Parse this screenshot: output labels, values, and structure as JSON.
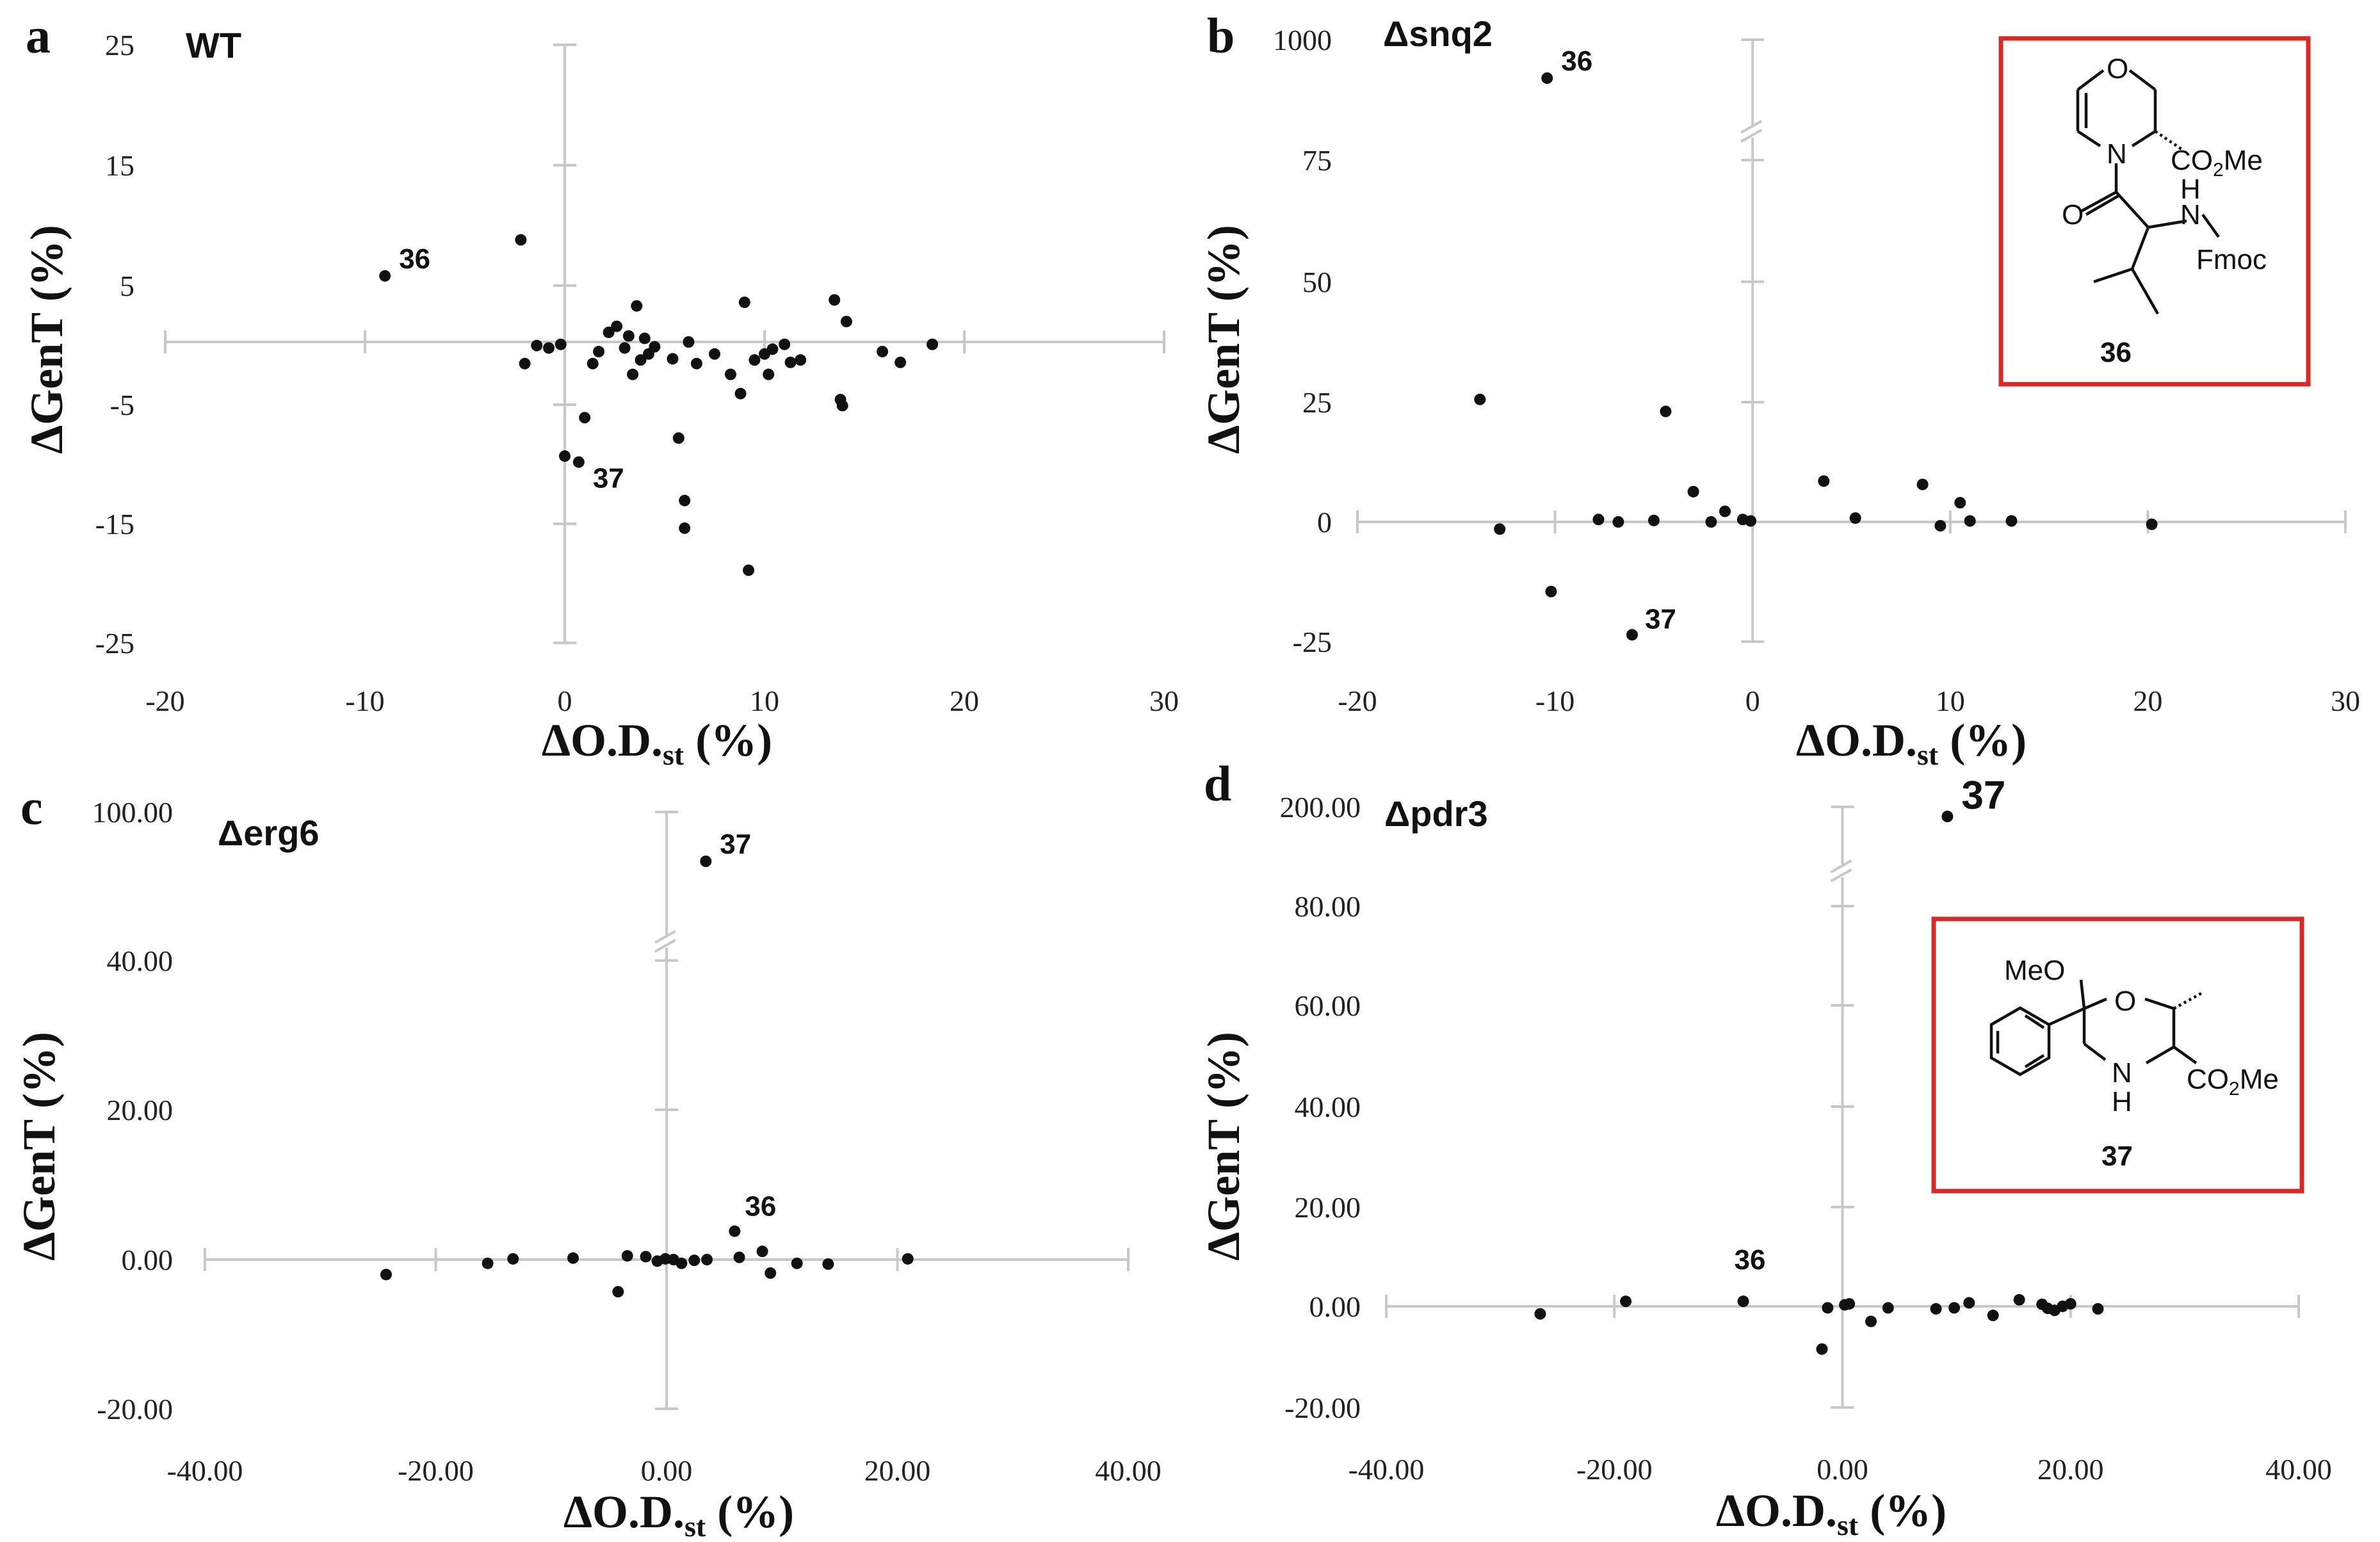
{
  "chart_data": [
    {
      "panel": "a",
      "strain": "WT",
      "type": "scatter",
      "xlabel": "ΔO.D.",
      "xlabel_sub": "st",
      "xlabel_suffix": " (%)",
      "ylabel": "ΔGenT (%)",
      "xlim": [
        -20,
        30
      ],
      "ylim": [
        -25,
        25
      ],
      "xticks": [
        "-20",
        "-10",
        "0",
        "10",
        "20",
        "30"
      ],
      "xtick_values": [
        -20,
        -10,
        0,
        10,
        20,
        30
      ],
      "yticks": [
        "25",
        "15",
        "5",
        "-5",
        "-15",
        "-25"
      ],
      "ytick_values": [
        25,
        15,
        5,
        -5,
        -15,
        -25
      ],
      "axis_break": false,
      "points": [
        {
          "x": -9.0,
          "y": 5.5,
          "label": "36"
        },
        {
          "x": -2.2,
          "y": 8.5
        },
        {
          "x": -2.0,
          "y": -1.8
        },
        {
          "x": -1.4,
          "y": -0.3
        },
        {
          "x": -0.8,
          "y": -0.5
        },
        {
          "x": -0.2,
          "y": -0.2
        },
        {
          "x": 0.0,
          "y": -9.5
        },
        {
          "x": 0.7,
          "y": -10.0,
          "label": "37"
        },
        {
          "x": 1.0,
          "y": -6.3
        },
        {
          "x": 1.4,
          "y": -1.8
        },
        {
          "x": 1.7,
          "y": -0.8
        },
        {
          "x": 2.2,
          "y": 0.8
        },
        {
          "x": 2.6,
          "y": 1.3
        },
        {
          "x": 3.0,
          "y": -0.5
        },
        {
          "x": 3.2,
          "y": 0.5
        },
        {
          "x": 3.4,
          "y": -2.7
        },
        {
          "x": 3.6,
          "y": 3.0
        },
        {
          "x": 3.8,
          "y": -1.5
        },
        {
          "x": 4.0,
          "y": 0.3
        },
        {
          "x": 4.2,
          "y": -1.0
        },
        {
          "x": 4.5,
          "y": -0.4
        },
        {
          "x": 5.4,
          "y": -1.4
        },
        {
          "x": 5.7,
          "y": -8.0
        },
        {
          "x": 6.0,
          "y": -13.2
        },
        {
          "x": 6.0,
          "y": -15.5
        },
        {
          "x": 6.2,
          "y": 0.0
        },
        {
          "x": 6.6,
          "y": -1.8
        },
        {
          "x": 7.5,
          "y": -1.0
        },
        {
          "x": 8.3,
          "y": -2.7
        },
        {
          "x": 8.8,
          "y": -4.3
        },
        {
          "x": 9.0,
          "y": 3.3
        },
        {
          "x": 9.2,
          "y": -19.0
        },
        {
          "x": 9.5,
          "y": -1.5
        },
        {
          "x": 10.0,
          "y": -1.0
        },
        {
          "x": 10.2,
          "y": -2.7
        },
        {
          "x": 10.4,
          "y": -0.6
        },
        {
          "x": 11.0,
          "y": -0.2
        },
        {
          "x": 11.3,
          "y": -1.7
        },
        {
          "x": 11.8,
          "y": -1.5
        },
        {
          "x": 13.5,
          "y": 3.5
        },
        {
          "x": 13.8,
          "y": -4.8
        },
        {
          "x": 13.9,
          "y": -5.3
        },
        {
          "x": 14.1,
          "y": 1.7
        },
        {
          "x": 15.9,
          "y": -0.8
        },
        {
          "x": 16.8,
          "y": -1.7
        },
        {
          "x": 18.4,
          "y": -0.2
        }
      ]
    },
    {
      "panel": "b",
      "strain": "Δsnq2",
      "type": "scatter",
      "xlabel": "ΔO.D.",
      "xlabel_sub": "st",
      "xlabel_suffix": " (%)",
      "ylabel": "ΔGenT (%)",
      "xlim": [
        -20,
        30
      ],
      "xticks": [
        "-20",
        "-10",
        "0",
        "10",
        "20",
        "30"
      ],
      "xtick_values": [
        -20,
        -10,
        0,
        10,
        20,
        30
      ],
      "yticks": [
        "1000",
        "75",
        "50",
        "25",
        "0",
        "-25"
      ],
      "axis_break": true,
      "lower_range": [
        -25,
        75
      ],
      "upper_range_label": "1000",
      "points": [
        {
          "x": -10.4,
          "y": 920,
          "label": "36"
        },
        {
          "x": -13.8,
          "y": 25.5
        },
        {
          "x": -12.8,
          "y": -1.5
        },
        {
          "x": -10.2,
          "y": -14.5
        },
        {
          "x": -7.8,
          "y": 0.5
        },
        {
          "x": -6.8,
          "y": 0.0
        },
        {
          "x": -6.1,
          "y": -23.5,
          "label": "37"
        },
        {
          "x": -5.0,
          "y": 0.3
        },
        {
          "x": -4.4,
          "y": 23.0
        },
        {
          "x": -3.0,
          "y": 6.3
        },
        {
          "x": -2.1,
          "y": 0.0
        },
        {
          "x": -1.4,
          "y": 2.2
        },
        {
          "x": -0.5,
          "y": 0.5
        },
        {
          "x": -0.1,
          "y": 0.2
        },
        {
          "x": 3.6,
          "y": 8.5
        },
        {
          "x": 5.2,
          "y": 0.8
        },
        {
          "x": 8.6,
          "y": 7.8
        },
        {
          "x": 9.5,
          "y": -0.8
        },
        {
          "x": 10.5,
          "y": 4.0
        },
        {
          "x": 11.0,
          "y": 0.2
        },
        {
          "x": 13.1,
          "y": 0.2
        },
        {
          "x": 20.2,
          "y": -0.5
        }
      ]
    },
    {
      "panel": "c",
      "strain": "Δerg6",
      "type": "scatter",
      "xlabel": "ΔO.D.",
      "xlabel_sub": "st",
      "xlabel_suffix": " (%)",
      "ylabel": "ΔGenT (%)",
      "xlim": [
        -40,
        40
      ],
      "xticks": [
        "-40.00",
        "-20.00",
        "0.00",
        "20.00",
        "40.00"
      ],
      "xtick_values": [
        -40,
        -20,
        0,
        20,
        40
      ],
      "yticks": [
        "100.00",
        "40.00",
        "20.00",
        "0.00",
        "-20.00"
      ],
      "axis_break": true,
      "lower_range": [
        -20,
        40
      ],
      "upper_range_label": "100.00",
      "points": [
        {
          "x": 3.4,
          "y": 53,
          "label": "37"
        },
        {
          "x": 5.9,
          "y": 3.8,
          "label": "36"
        },
        {
          "x": -24.3,
          "y": -2.0
        },
        {
          "x": -15.5,
          "y": -0.5
        },
        {
          "x": -13.3,
          "y": 0.1
        },
        {
          "x": -8.1,
          "y": 0.2
        },
        {
          "x": -4.2,
          "y": -4.3
        },
        {
          "x": -3.4,
          "y": 0.5
        },
        {
          "x": -1.8,
          "y": 0.4
        },
        {
          "x": -0.8,
          "y": -0.2
        },
        {
          "x": -0.1,
          "y": 0.1
        },
        {
          "x": 0.6,
          "y": 0.0
        },
        {
          "x": 1.3,
          "y": -0.5
        },
        {
          "x": 2.4,
          "y": -0.1
        },
        {
          "x": 3.5,
          "y": 0.0
        },
        {
          "x": 6.3,
          "y": 0.3
        },
        {
          "x": 8.3,
          "y": 1.1
        },
        {
          "x": 9.0,
          "y": -1.8
        },
        {
          "x": 11.3,
          "y": -0.5
        },
        {
          "x": 14.0,
          "y": -0.6
        },
        {
          "x": 20.9,
          "y": 0.1
        }
      ]
    },
    {
      "panel": "d",
      "strain": "Δpdr3",
      "type": "scatter",
      "xlabel": "ΔO.D.",
      "xlabel_sub": "st",
      "xlabel_suffix": " (%)",
      "ylabel": "ΔGenT (%)",
      "xlim": [
        -40,
        40
      ],
      "xticks": [
        "-40.00",
        "-20.00",
        "0.00",
        "20.00",
        "40.00"
      ],
      "xtick_values": [
        -40,
        -20,
        0,
        20,
        40
      ],
      "yticks": [
        "200.00",
        "80.00",
        "60.00",
        "40.00",
        "20.00",
        "0.00",
        "-20.00"
      ],
      "axis_break": true,
      "lower_range": [
        -20,
        80
      ],
      "upper_range_label": "200.00",
      "points": [
        {
          "x": 9.2,
          "y": 195,
          "label": "37"
        },
        {
          "x": -8.7,
          "y": 1.0,
          "label": "36"
        },
        {
          "x": -26.5,
          "y": -1.5
        },
        {
          "x": -19.0,
          "y": 1.0
        },
        {
          "x": -1.8,
          "y": -8.5
        },
        {
          "x": -1.3,
          "y": -0.3
        },
        {
          "x": 0.2,
          "y": 0.3
        },
        {
          "x": 0.6,
          "y": 0.5
        },
        {
          "x": 2.5,
          "y": -3.0
        },
        {
          "x": 4.0,
          "y": -0.3
        },
        {
          "x": 8.2,
          "y": -0.5
        },
        {
          "x": 9.8,
          "y": -0.3
        },
        {
          "x": 11.1,
          "y": 0.7
        },
        {
          "x": 13.2,
          "y": -1.8
        },
        {
          "x": 15.5,
          "y": 1.3
        },
        {
          "x": 17.5,
          "y": 0.4
        },
        {
          "x": 18.0,
          "y": -0.4
        },
        {
          "x": 18.6,
          "y": -0.8
        },
        {
          "x": 19.3,
          "y": 0.0
        },
        {
          "x": 20.0,
          "y": 0.5
        },
        {
          "x": 22.4,
          "y": -0.5
        }
      ]
    }
  ],
  "insets": [
    {
      "panel": "b",
      "compound_number": "36",
      "atom_labels": [
        "O",
        "N",
        "O",
        "N",
        "H",
        "CO",
        "2",
        "Me",
        "Fmoc"
      ]
    },
    {
      "panel": "d",
      "compound_number": "37",
      "atom_labels": [
        "MeO",
        "O",
        "N",
        "H",
        "CO",
        "2",
        "Me"
      ]
    }
  ],
  "colors": {
    "axis": "#c8c8c8",
    "point": "#111111",
    "inset_border": "#d42a2a"
  }
}
